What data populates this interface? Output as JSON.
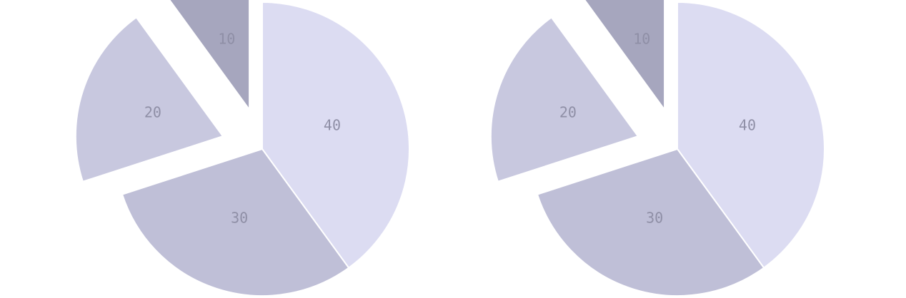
{
  "chart_data": [
    {
      "type": "pie",
      "slices": [
        {
          "label": "40",
          "value": 40,
          "color": "#dcdcf2",
          "exploded": false
        },
        {
          "label": "30",
          "value": 30,
          "color": "#bfbfd7",
          "exploded": false
        },
        {
          "label": "20",
          "value": 20,
          "color": "#c8c8df",
          "exploded": true
        },
        {
          "label": "10",
          "value": 10,
          "color": "#a6a6be",
          "exploded": true
        }
      ],
      "start_angle": "12 o'clock",
      "direction": "clockwise"
    },
    {
      "type": "pie",
      "slices": [
        {
          "label": "40",
          "value": 40,
          "color": "#dcdcf2",
          "exploded": false
        },
        {
          "label": "30",
          "value": 30,
          "color": "#bfbfd7",
          "exploded": false
        },
        {
          "label": "20",
          "value": 20,
          "color": "#c8c8df",
          "exploded": true
        },
        {
          "label": "10",
          "value": 10,
          "color": "#a6a6be",
          "exploded": true
        }
      ],
      "start_angle": "12 o'clock",
      "direction": "clockwise"
    }
  ]
}
